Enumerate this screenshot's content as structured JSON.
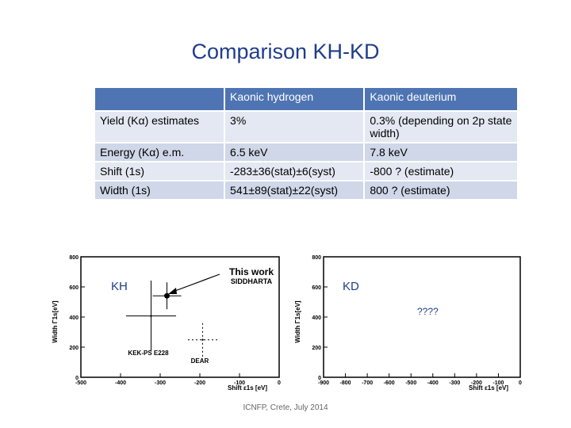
{
  "slide": {
    "title": "Comparison KH-KD",
    "footer": "ICNFP, Crete, July 2014"
  },
  "table": {
    "headers": [
      "",
      "Kaonic hydrogen",
      "Kaonic deuterium"
    ],
    "rows": [
      [
        "Yield (Kα) estimates",
        "3%",
        "0.3% (depending on 2p state width)"
      ],
      [
        "Energy (Kα) e.m.",
        "6.5 keV",
        "7.8 keV"
      ],
      [
        "Shift (1s)",
        "-283±36(stat)±6(syst)",
        "-800 ? (estimate)"
      ],
      [
        "Width (1s)",
        "541±89(stat)±22(syst)",
        "800 ? (estimate)"
      ]
    ]
  },
  "plots": {
    "left": {
      "label": "KH",
      "ylabel": "Width Γ1s[eV]",
      "xlabel": "Shift ε1s [eV]",
      "yticks": [
        "800",
        "600",
        "400",
        "200",
        "0"
      ],
      "xticks": [
        "-500",
        "-400",
        "-300",
        "-200",
        "-100",
        "0"
      ],
      "annotations": [
        "This work",
        "SIDDHARTA",
        "KEK-PS E228",
        "DEAR"
      ]
    },
    "right": {
      "label": "KD",
      "note": "????",
      "ylabel": "Width Γ1s[eV]",
      "xlabel": "Shift ε1s [eV]",
      "yticks": [
        "800",
        "600",
        "400",
        "200",
        "0"
      ],
      "xticks": [
        "-900",
        "-800",
        "-700",
        "-600",
        "-500",
        "-400",
        "-300",
        "-200",
        "-100",
        "0"
      ]
    }
  },
  "chart_data": [
    {
      "type": "scatter",
      "xlabel": "Shift ε1s [eV]",
      "ylabel": "Width Γ1s[eV]",
      "xlim": [
        -500,
        0
      ],
      "ylim": [
        0,
        800
      ],
      "series": [
        {
          "name": "SIDDHARTA",
          "x": [
            -283
          ],
          "y": [
            541
          ],
          "xerr": [
            36
          ],
          "yerr": [
            89
          ]
        },
        {
          "name": "KEK-PS E228",
          "x": [
            -323
          ],
          "y": [
            407
          ],
          "xerr": [
            63
          ],
          "yerr": [
            235
          ]
        },
        {
          "name": "DEAR",
          "x": [
            -193
          ],
          "y": [
            249
          ],
          "xerr": [
            37
          ],
          "yerr": [
            111
          ]
        }
      ]
    },
    {
      "type": "scatter",
      "xlabel": "Shift ε1s [eV]",
      "ylabel": "Width Γ1s[eV]",
      "xlim": [
        -900,
        0
      ],
      "ylim": [
        0,
        800
      ],
      "series": []
    }
  ]
}
